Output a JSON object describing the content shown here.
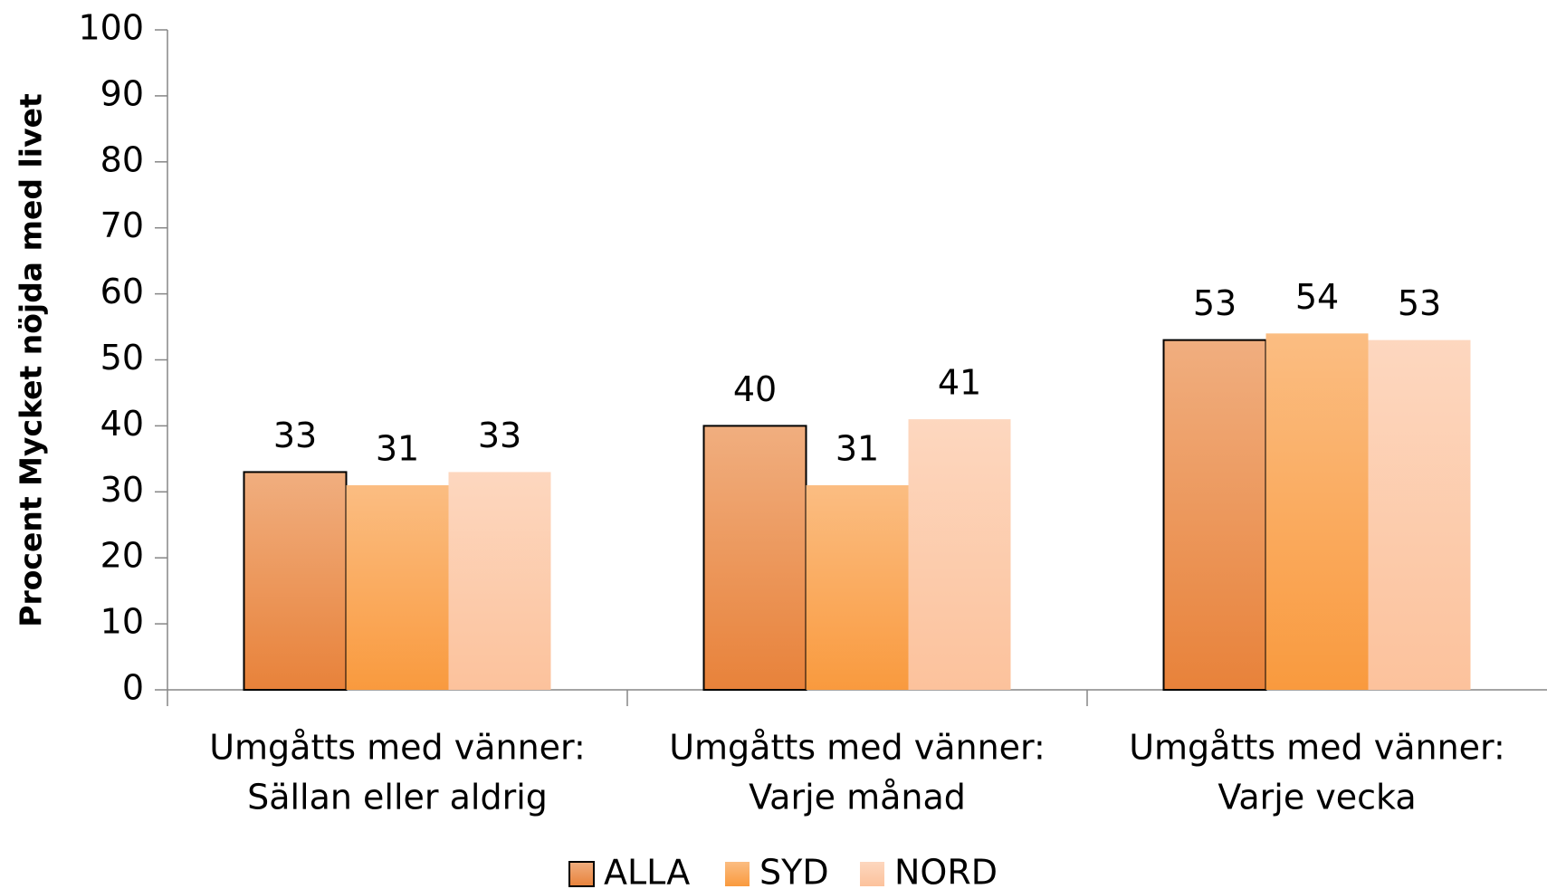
{
  "chart_data": {
    "type": "bar",
    "y_label": "Procent Mycket nöjda med livet",
    "categories": [
      [
        "Umgåtts med vänner:",
        "Sällan eller aldrig"
      ],
      [
        "Umgåtts med vänner:",
        "Varje månad"
      ],
      [
        "Umgåtts med vänner:",
        "Varje vecka"
      ]
    ],
    "series": [
      {
        "name": "ALLA",
        "color": "#e8823a",
        "values": [
          33,
          40,
          53
        ]
      },
      {
        "name": "SYD",
        "color": "#f99a3e",
        "values": [
          31,
          31,
          54
        ]
      },
      {
        "name": "NORD",
        "color": "#fcc29c",
        "values": [
          33,
          41,
          53
        ]
      }
    ],
    "ylim": [
      0,
      100
    ],
    "yticks": [
      0,
      10,
      20,
      30,
      40,
      50,
      60,
      70,
      80,
      90,
      100
    ],
    "grid": false,
    "legend": "bottom"
  }
}
